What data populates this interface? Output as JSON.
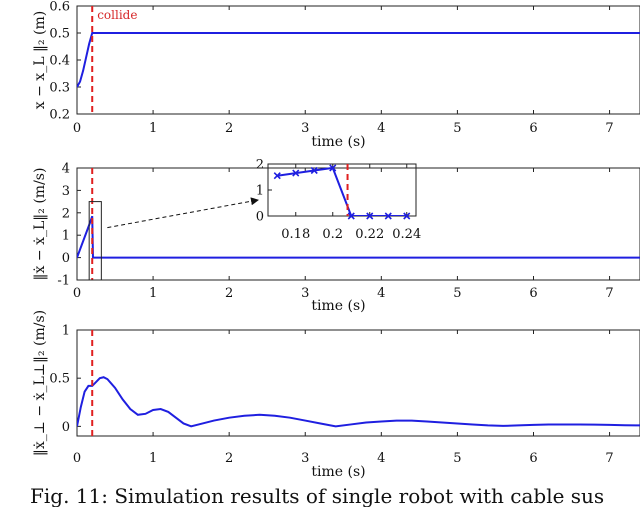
{
  "chart_data": [
    {
      "type": "line",
      "xlabel": "time (s)",
      "ylabel": "x − x_L ‖₂ (m)",
      "xlim": [
        0,
        7.4
      ],
      "ylim": [
        0.2,
        0.6
      ],
      "xticks": [
        0,
        1,
        2,
        3,
        4,
        5,
        6,
        7
      ],
      "yticks": [
        0.2,
        0.3,
        0.4,
        0.5,
        0.6
      ],
      "annotation": "collide",
      "collision_time": 0.2,
      "series": [
        {
          "x": [
            0,
            0.04,
            0.08,
            0.12,
            0.16,
            0.2,
            0.21,
            7.4
          ],
          "y": [
            0.3,
            0.32,
            0.36,
            0.41,
            0.46,
            0.5,
            0.5,
            0.5
          ]
        }
      ]
    },
    {
      "type": "line",
      "xlabel": "time (s)",
      "ylabel": "‖ẋ − ẋ_L‖₂ (m/s)",
      "xlim": [
        0,
        7.4
      ],
      "ylim": [
        -1,
        4
      ],
      "xticks": [
        0,
        1,
        2,
        3,
        4,
        5,
        6,
        7
      ],
      "yticks": [
        -1,
        0,
        1,
        2,
        3,
        4
      ],
      "collision_time": 0.2,
      "series": [
        {
          "x": [
            0,
            0.17,
            0.18,
            0.19,
            0.2,
            0.21,
            7.4
          ],
          "y": [
            0,
            1.55,
            1.65,
            1.75,
            1.85,
            0,
            0
          ]
        }
      ]
    },
    {
      "type": "line",
      "xlabel": "",
      "ylabel": "",
      "xlim": [
        0.165,
        0.245
      ],
      "ylim": [
        0,
        2
      ],
      "xticks": [
        0.18,
        0.2,
        0.22,
        0.24
      ],
      "yticks": [
        0,
        1,
        2
      ],
      "collision_time": 0.208,
      "series": [
        {
          "x": [
            0.17,
            0.18,
            0.19,
            0.2,
            0.21,
            0.22,
            0.23,
            0.24
          ],
          "y": [
            1.55,
            1.65,
            1.75,
            1.85,
            0.0,
            0.0,
            0.0,
            0.0
          ]
        }
      ]
    },
    {
      "type": "line",
      "xlabel": "time (s)",
      "ylabel": "‖ẋ_⊥ − ẋ_L⊥‖₂ (m/s)",
      "xlim": [
        0,
        7.4
      ],
      "ylim": [
        -0.1,
        1
      ],
      "xticks": [
        0,
        1,
        2,
        3,
        4,
        5,
        6,
        7
      ],
      "yticks": [
        0,
        0.5,
        1
      ],
      "collision_time": 0.2,
      "series": [
        {
          "x": [
            0,
            0.05,
            0.1,
            0.15,
            0.2,
            0.25,
            0.3,
            0.35,
            0.4,
            0.5,
            0.6,
            0.7,
            0.8,
            0.9,
            1.0,
            1.1,
            1.2,
            1.3,
            1.4,
            1.5,
            1.6,
            1.8,
            2.0,
            2.2,
            2.4,
            2.6,
            2.8,
            3.0,
            3.2,
            3.4,
            3.6,
            3.8,
            4.0,
            4.2,
            4.4,
            4.6,
            4.8,
            5.0,
            5.2,
            5.4,
            5.6,
            5.8,
            6.0,
            6.2,
            6.4,
            6.6,
            6.8,
            7.0,
            7.2,
            7.4
          ],
          "y": [
            0.0,
            0.2,
            0.36,
            0.42,
            0.42,
            0.46,
            0.5,
            0.51,
            0.49,
            0.4,
            0.28,
            0.18,
            0.12,
            0.13,
            0.17,
            0.18,
            0.15,
            0.09,
            0.03,
            0.0,
            0.02,
            0.06,
            0.09,
            0.11,
            0.12,
            0.11,
            0.09,
            0.06,
            0.03,
            0.0,
            0.02,
            0.04,
            0.05,
            0.06,
            0.06,
            0.05,
            0.04,
            0.03,
            0.02,
            0.01,
            0.005,
            0.01,
            0.015,
            0.02,
            0.02,
            0.02,
            0.018,
            0.015,
            0.012,
            0.01
          ]
        }
      ]
    }
  ],
  "caption": "Fig. 11: Simulation results of single robot with cable sus"
}
